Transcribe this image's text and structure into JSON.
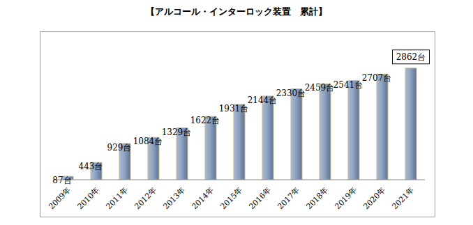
{
  "chart_data": {
    "type": "bar",
    "title": "【アルコール・インターロック装置　累計】",
    "categories": [
      "2009年",
      "2010年",
      "2011年",
      "2012年",
      "2013年",
      "2014年",
      "2015年",
      "2016年",
      "2017年",
      "2018年",
      "2019年",
      "2020年",
      "2021年"
    ],
    "values": [
      87,
      443,
      929,
      1084,
      1329,
      1622,
      1931,
      2144,
      2330,
      2459,
      2541,
      2707,
      2862
    ],
    "value_labels": [
      "87台",
      "443台",
      "929台",
      "1084台",
      "1329台",
      "1622台",
      "1931台",
      "2144台",
      "2330台",
      "2459台",
      "2541台",
      "2707台",
      "2862台"
    ],
    "color": "#8ea3c1",
    "ylim": [
      0,
      3500
    ],
    "yticks": [
      0,
      3500
    ],
    "grid": false,
    "data_labels": true,
    "tick_labels": "x"
  }
}
